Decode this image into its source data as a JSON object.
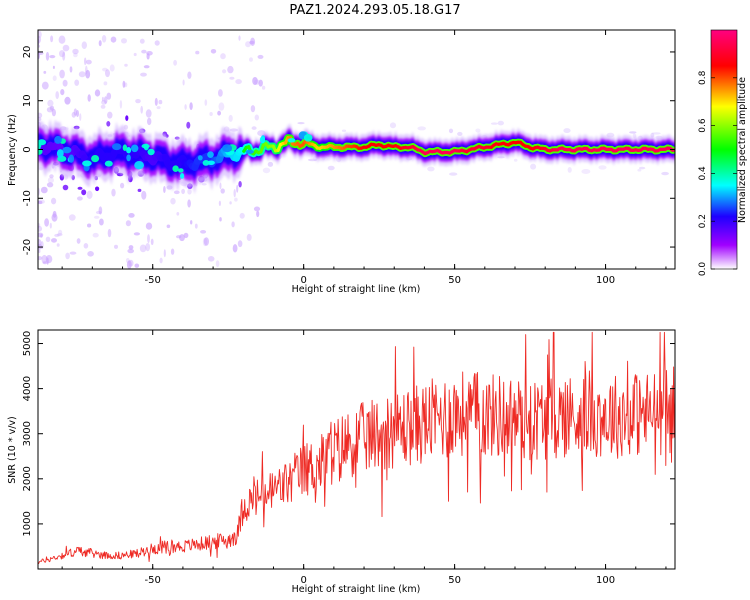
{
  "title": "PAZ1.2024.293.05.18.G17",
  "colors": {
    "background": "#ffffff",
    "axes": "#000000",
    "snr_line": "#ee2a24",
    "colormap": [
      "#ffffff",
      "#a000ff",
      "#1e00ff",
      "#00ffff",
      "#00ff00",
      "#ffff00",
      "#ff0000",
      "#ff0080"
    ]
  },
  "chart_data": [
    {
      "type": "heatmap",
      "xlabel": "Height of straight line (km)",
      "ylabel": "Frequency (Hz)",
      "xlim": [
        -88,
        123
      ],
      "ylim": [
        -24.5,
        24.5
      ],
      "xticks": [
        -50,
        0,
        50,
        100
      ],
      "xtick_labels": [
        "-50",
        "0",
        "50",
        "100"
      ],
      "yticks": [
        -20,
        -10,
        0,
        10,
        20
      ],
      "ytick_labels": [
        "-20",
        "-10",
        "0",
        "10",
        "20"
      ],
      "grid": false,
      "colorbar": {
        "label": "Normalized spectral amplitude",
        "range": [
          0,
          1
        ],
        "ticks": [
          0,
          0.2,
          0.4,
          0.6,
          0.8
        ],
        "tick_labels": [
          "0.0",
          "0.2",
          "0.4",
          "0.6",
          "0.8"
        ],
        "colormap": "rainbow (white, violet, blue, cyan, green, yellow, red, magenta)"
      },
      "ridge": {
        "description": "Peak frequency track versus height",
        "x": [
          -88,
          -80,
          -75,
          -70,
          -65,
          -60,
          -55,
          -50,
          -45,
          -40,
          -35,
          -30,
          -25,
          -20,
          -15,
          -10,
          -5,
          0,
          5,
          10,
          15,
          20,
          25,
          30,
          35,
          40,
          45,
          50,
          55,
          60,
          65,
          70,
          75,
          80,
          85,
          90,
          95,
          100,
          105,
          110,
          115,
          120,
          123
        ],
        "y": [
          1,
          0,
          -1,
          -2,
          -1,
          -0.5,
          -1,
          -1.5,
          -2.5,
          -3,
          -2.5,
          -2,
          -1,
          -0.5,
          0,
          0.5,
          1.5,
          1.5,
          0.5,
          0.5,
          0.5,
          0.5,
          1,
          0.5,
          0.5,
          -0.5,
          -0.5,
          -0.5,
          0,
          0.5,
          1,
          1.5,
          0.5,
          0,
          0,
          0,
          0,
          0,
          0,
          0,
          0,
          0,
          0
        ],
        "peak_amplitude": [
          0.25,
          0.22,
          0.25,
          0.3,
          0.3,
          0.3,
          0.3,
          0.25,
          0.3,
          0.3,
          0.35,
          0.35,
          0.45,
          0.5,
          0.55,
          0.6,
          0.75,
          0.8,
          0.7,
          0.75,
          0.8,
          0.85,
          0.85,
          0.85,
          0.9,
          0.95,
          0.95,
          0.95,
          0.9,
          0.9,
          0.85,
          0.85,
          0.85,
          0.9,
          0.95,
          0.95,
          0.95,
          0.95,
          0.95,
          0.95,
          0.95,
          0.95,
          0.95
        ]
      }
    },
    {
      "type": "line",
      "xlabel": "Height of straight line (km)",
      "ylabel": "SNR (10 * v/v)",
      "xlim": [
        -88,
        123
      ],
      "ylim": [
        0,
        5300
      ],
      "xticks": [
        -50,
        0,
        50,
        100
      ],
      "xtick_labels": [
        "-50",
        "0",
        "50",
        "100"
      ],
      "yticks": [
        1000,
        2000,
        3000,
        4000,
        5000
      ],
      "ytick_labels": [
        "1000",
        "2000",
        "3000",
        "4000",
        "5000"
      ],
      "grid": false,
      "series": [
        {
          "color": "#ee2a24",
          "x": [
            -88,
            -85,
            -80,
            -75,
            -70,
            -65,
            -60,
            -55,
            -50,
            -45,
            -40,
            -35,
            -30,
            -25,
            -22,
            -20,
            -15,
            -10,
            -5,
            0,
            5,
            10,
            15,
            20,
            25,
            30,
            35,
            40,
            45,
            50,
            55,
            60,
            65,
            70,
            75,
            80,
            85,
            90,
            95,
            100,
            105,
            110,
            115,
            120,
            123
          ],
          "y": [
            150,
            200,
            300,
            400,
            350,
            300,
            300,
            350,
            450,
            500,
            500,
            550,
            600,
            650,
            750,
            1400,
            1600,
            1750,
            1900,
            2200,
            2300,
            2600,
            2800,
            2900,
            3000,
            3100,
            3150,
            3250,
            3350,
            3450,
            3450,
            3400,
            3400,
            3350,
            3300,
            3350,
            3400,
            3400,
            3450,
            3400,
            3400,
            3450,
            3450,
            3500,
            3550
          ]
        }
      ]
    }
  ]
}
